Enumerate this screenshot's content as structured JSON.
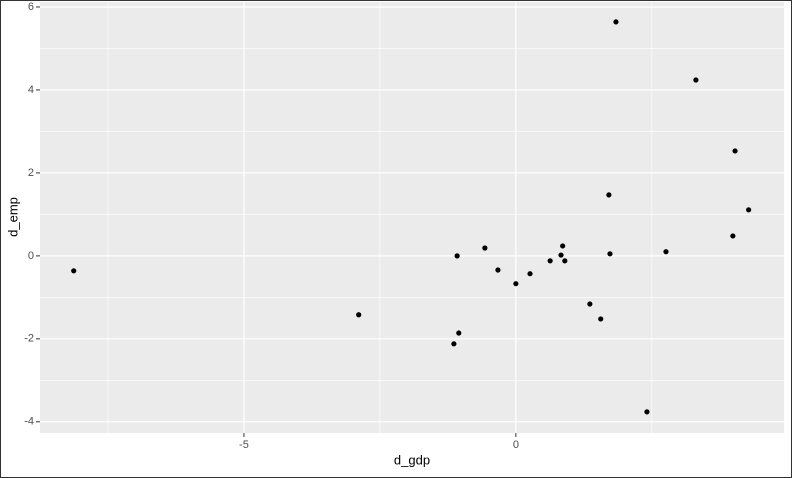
{
  "chart_data": {
    "type": "scatter",
    "x_label": "d_gdp",
    "y_label": "d_emp",
    "x": [
      -8.13,
      -2.89,
      -1.08,
      -1.14,
      -1.05,
      -0.57,
      -0.33,
      0.0,
      0.26,
      0.63,
      0.83,
      0.86,
      0.9,
      1.36,
      1.56,
      1.71,
      1.73,
      1.84,
      2.41,
      2.76,
      3.31,
      3.99,
      4.03,
      4.28
    ],
    "values": [
      -0.36,
      -1.42,
      0.0,
      -2.12,
      -1.86,
      0.19,
      -0.34,
      -0.67,
      -0.43,
      -0.12,
      0.02,
      0.24,
      -0.12,
      -1.16,
      -1.52,
      1.47,
      0.05,
      5.64,
      -3.76,
      0.1,
      4.24,
      0.48,
      2.53,
      1.11
    ],
    "color": "#000000",
    "xlim": [
      -8.75,
      4.93
    ],
    "ylim": [
      -4.27,
      6.12
    ],
    "xticks": [
      -5,
      0
    ],
    "yticks": [
      -4,
      -2,
      0,
      2,
      4,
      6
    ],
    "grid": true
  }
}
